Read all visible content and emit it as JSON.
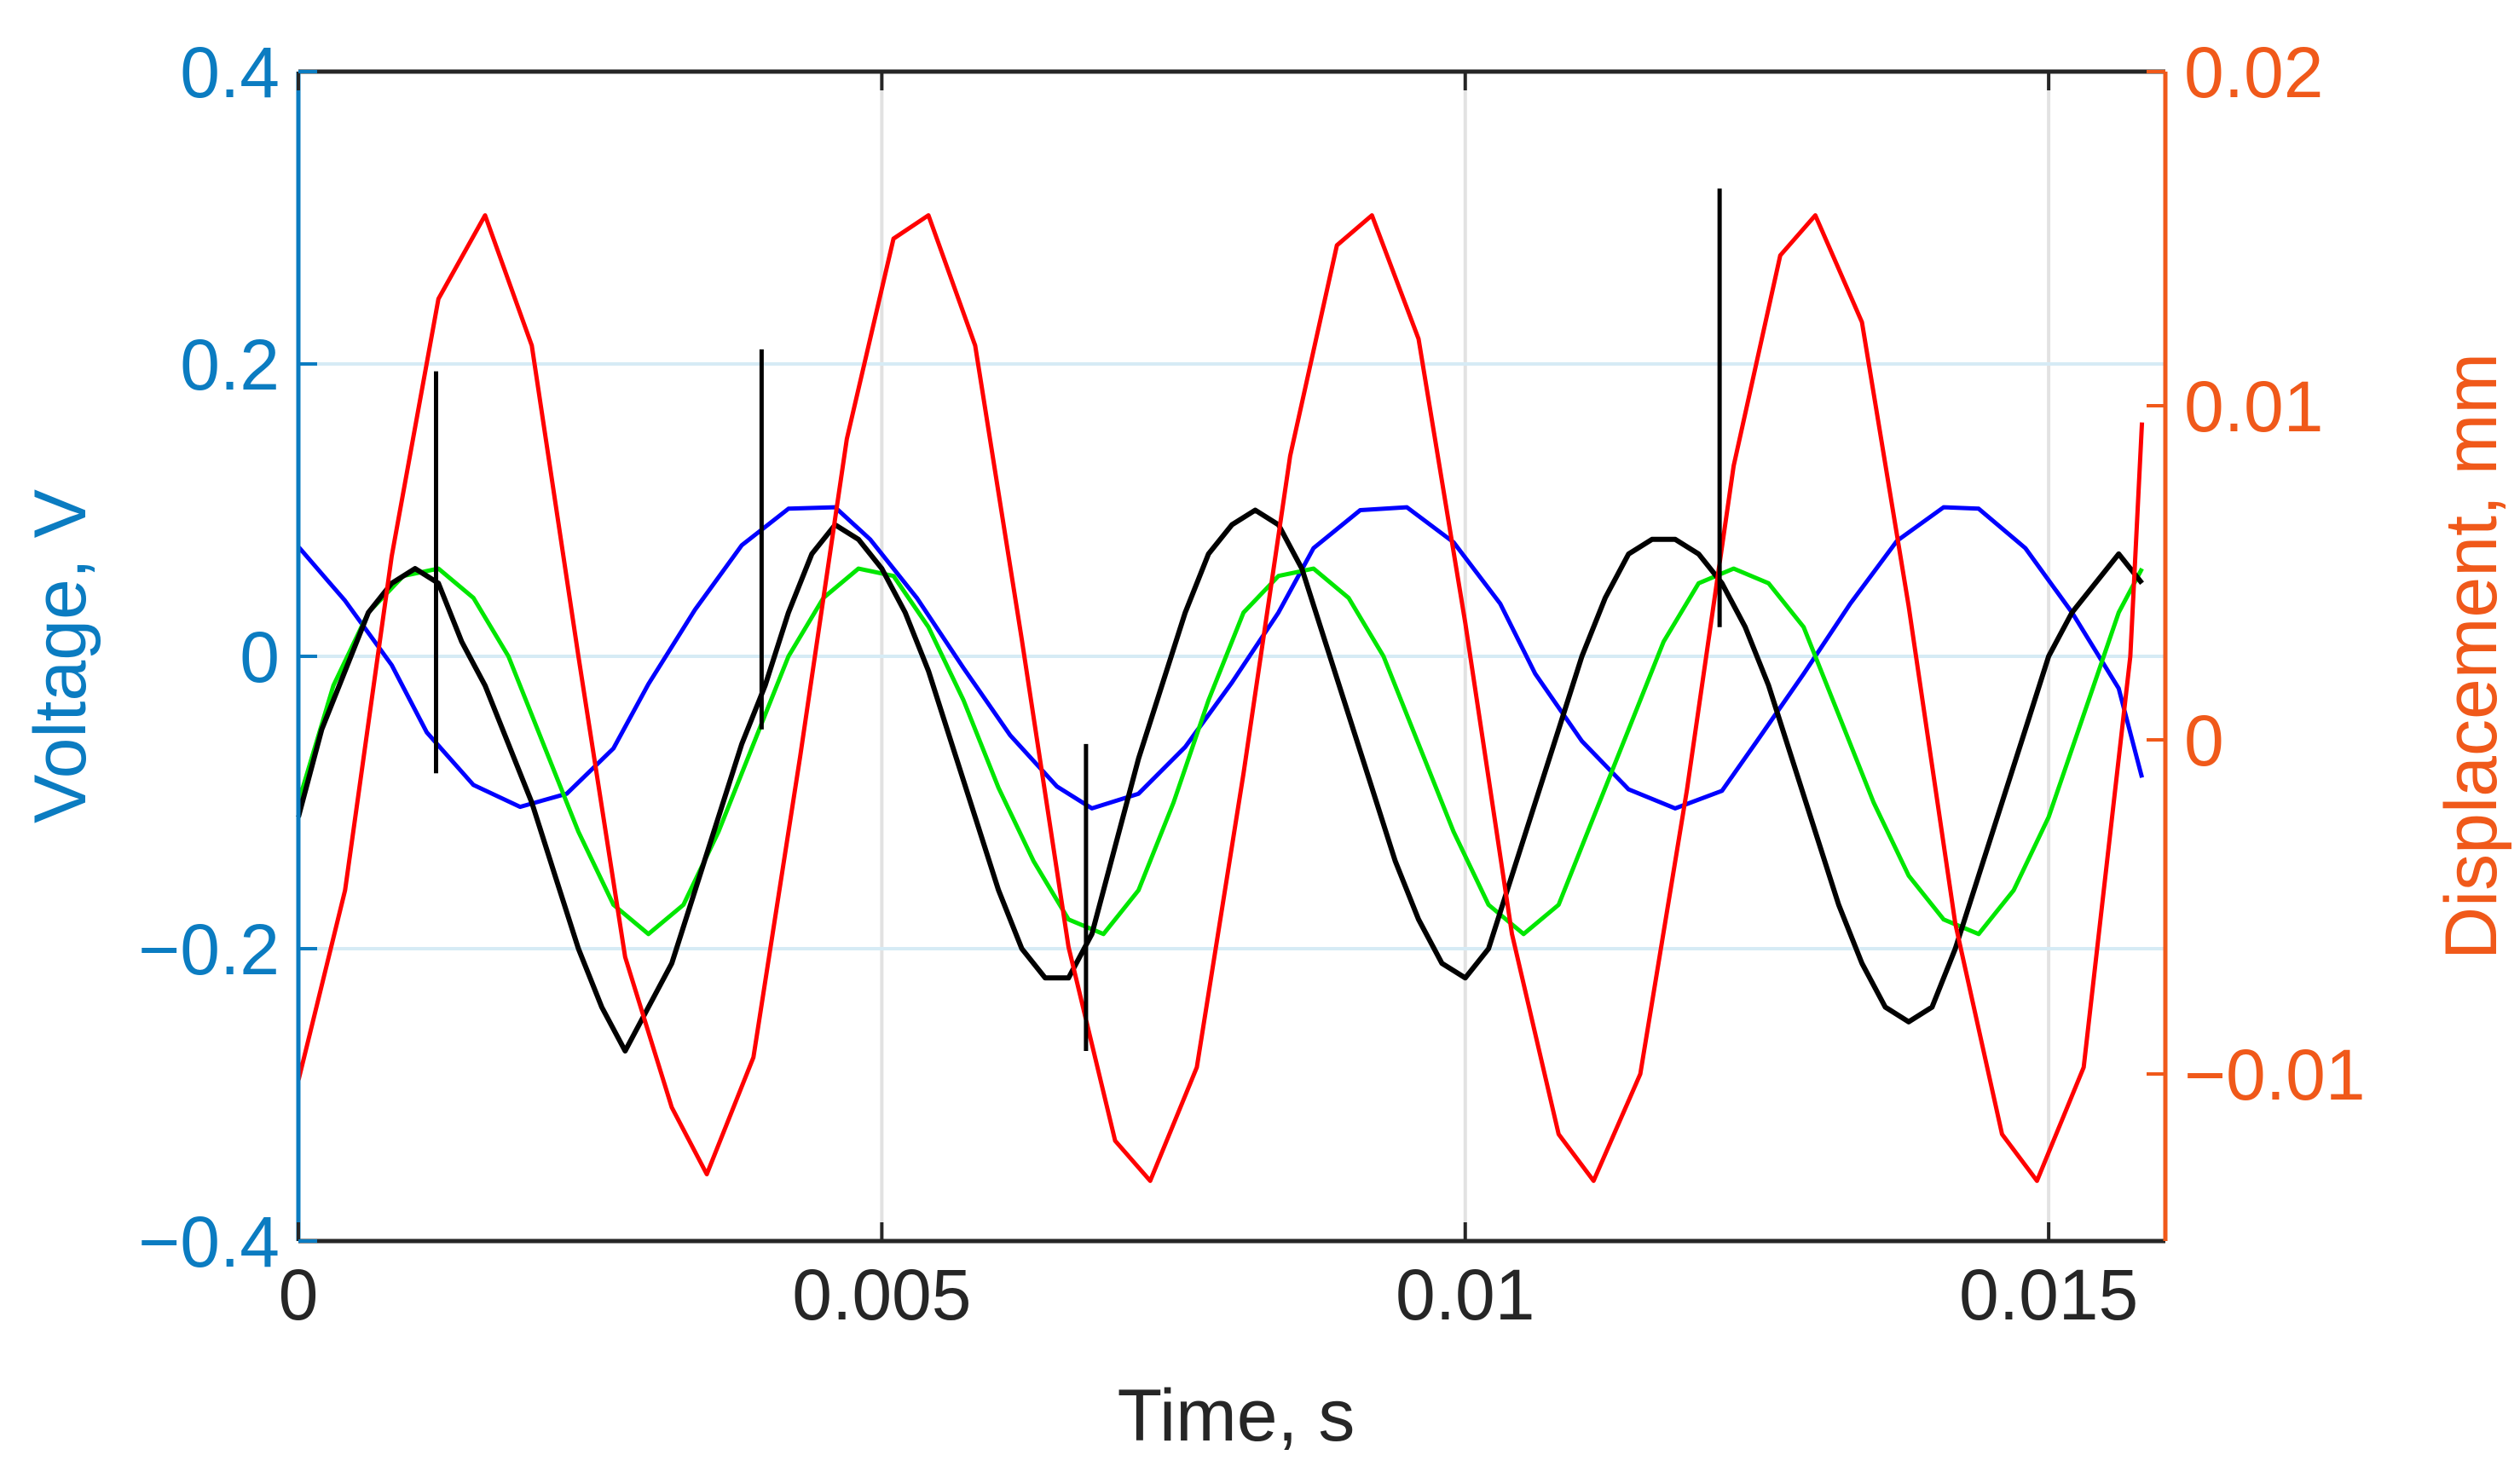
{
  "colors": {
    "left_axis": "#0b7cc1",
    "right_axis": "#f0591a",
    "frame": "#262626",
    "grid_x": "#e2e2e2",
    "grid_y": "#d6ebf5",
    "blue": "#0000ff",
    "green": "#00e600",
    "black": "#000000",
    "red": "#ff0000"
  },
  "chart_data": {
    "type": "line",
    "xlabel": "Time, s",
    "ylabel_left": "Voltage, V",
    "ylabel_right": "Displacement,  mm",
    "xlim": [
      0,
      0.016
    ],
    "ylim_left": [
      -0.4,
      0.4
    ],
    "ylim_right": [
      -0.015,
      0.02
    ],
    "x_ticks": [
      0,
      0.005,
      0.01,
      0.015
    ],
    "x_tick_labels": [
      "0",
      "0.005",
      "0.01",
      "0.015"
    ],
    "y_left_ticks": [
      -0.4,
      -0.2,
      0,
      0.2,
      0.4
    ],
    "y_left_tick_labels": [
      "−0.4",
      "−0.2",
      "0",
      "0.2",
      "0.4"
    ],
    "y_right_ticks": [
      -0.01,
      0,
      0.01,
      0.02
    ],
    "y_right_tick_labels": [
      "−0.01",
      "0",
      "0.01",
      "0.02"
    ],
    "grid": true,
    "series": [
      {
        "axis": "left",
        "color": "blue",
        "x": [
          0,
          0.0004,
          0.0008,
          0.0011,
          0.0015,
          0.0019,
          0.0023,
          0.0027,
          0.003,
          0.0034,
          0.0038,
          0.0042,
          0.0046,
          0.0049,
          0.0053,
          0.0057,
          0.0061,
          0.0065,
          0.0068,
          0.0072,
          0.0076,
          0.008,
          0.0084,
          0.0087,
          0.0091,
          0.0095,
          0.0099,
          0.0103,
          0.0106,
          0.011,
          0.0114,
          0.0118,
          0.0122,
          0.0125,
          0.0129,
          0.0133,
          0.0137,
          0.0141,
          0.0144,
          0.0148,
          0.0152,
          0.0156,
          0.0158
        ],
        "y": [
          0.075,
          0.038,
          -0.006,
          -0.052,
          -0.088,
          -0.103,
          -0.094,
          -0.063,
          -0.019,
          0.032,
          0.076,
          0.101,
          0.102,
          0.08,
          0.04,
          -0.008,
          -0.054,
          -0.089,
          -0.104,
          -0.094,
          -0.062,
          -0.018,
          0.03,
          0.074,
          0.1,
          0.102,
          0.078,
          0.036,
          -0.012,
          -0.058,
          -0.091,
          -0.104,
          -0.092,
          -0.058,
          -0.012,
          0.036,
          0.079,
          0.102,
          0.101,
          0.074,
          0.03,
          -0.022,
          -0.083
        ]
      },
      {
        "axis": "left",
        "color": "green",
        "x": [
          0,
          0.0003,
          0.0006,
          0.0009,
          0.0012,
          0.0015,
          0.0018,
          0.0021,
          0.0024,
          0.0027,
          0.003,
          0.0033,
          0.0036,
          0.0039,
          0.0042,
          0.0045,
          0.0048,
          0.0051,
          0.0054,
          0.0057,
          0.006,
          0.0063,
          0.0066,
          0.0069,
          0.0072,
          0.0075,
          0.0078,
          0.0081,
          0.0084,
          0.0087,
          0.009,
          0.0093,
          0.0096,
          0.0099,
          0.0102,
          0.0105,
          0.0108,
          0.0111,
          0.0114,
          0.0117,
          0.012,
          0.0123,
          0.0126,
          0.0129,
          0.0132,
          0.0135,
          0.0138,
          0.0141,
          0.0144,
          0.0147,
          0.015,
          0.0153,
          0.0156,
          0.0158
        ],
        "y": [
          -0.1,
          -0.02,
          0.03,
          0.055,
          0.06,
          0.04,
          0.0,
          -0.06,
          -0.12,
          -0.17,
          -0.19,
          -0.17,
          -0.12,
          -0.06,
          0.0,
          0.04,
          0.06,
          0.055,
          0.02,
          -0.03,
          -0.09,
          -0.14,
          -0.18,
          -0.19,
          -0.16,
          -0.1,
          -0.03,
          0.03,
          0.055,
          0.06,
          0.04,
          0.0,
          -0.06,
          -0.12,
          -0.17,
          -0.19,
          -0.17,
          -0.11,
          -0.05,
          0.01,
          0.05,
          0.06,
          0.05,
          0.02,
          -0.04,
          -0.1,
          -0.15,
          -0.18,
          -0.19,
          -0.16,
          -0.11,
          -0.04,
          0.03,
          0.06
        ]
      },
      {
        "axis": "left",
        "color": "black",
        "x": [
          0,
          0.0002,
          0.0004,
          0.0006,
          0.0008,
          0.001,
          0.0012,
          0.0014,
          0.0016,
          0.0018,
          0.002,
          0.0022,
          0.0024,
          0.0026,
          0.0028,
          0.003,
          0.0032,
          0.0034,
          0.0036,
          0.0038,
          0.004,
          0.0042,
          0.0044,
          0.0046,
          0.0048,
          0.005,
          0.0052,
          0.0054,
          0.0056,
          0.0058,
          0.006,
          0.0062,
          0.0064,
          0.0066,
          0.0068,
          0.007,
          0.0072,
          0.0074,
          0.0076,
          0.0078,
          0.008,
          0.0082,
          0.0084,
          0.0086,
          0.0088,
          0.009,
          0.0092,
          0.0094,
          0.0096,
          0.0098,
          0.01,
          0.0102,
          0.0104,
          0.0106,
          0.0108,
          0.011,
          0.0112,
          0.0114,
          0.0116,
          0.0118,
          0.012,
          0.0122,
          0.0124,
          0.0126,
          0.0128,
          0.013,
          0.0132,
          0.0134,
          0.0136,
          0.0138,
          0.014,
          0.0142,
          0.0144,
          0.0146,
          0.0148,
          0.015,
          0.0152,
          0.0154,
          0.0156,
          0.0158
        ],
        "y": [
          -0.11,
          -0.05,
          -0.01,
          0.03,
          0.05,
          0.06,
          0.05,
          0.01,
          -0.02,
          -0.06,
          -0.1,
          -0.15,
          -0.2,
          -0.24,
          -0.27,
          -0.24,
          -0.21,
          -0.16,
          -0.11,
          -0.06,
          -0.02,
          0.03,
          0.07,
          0.09,
          0.08,
          0.06,
          0.03,
          -0.01,
          -0.06,
          -0.11,
          -0.16,
          -0.2,
          -0.22,
          -0.22,
          -0.19,
          -0.13,
          -0.07,
          -0.02,
          0.03,
          0.07,
          0.09,
          0.1,
          0.09,
          0.06,
          0.01,
          -0.04,
          -0.09,
          -0.14,
          -0.18,
          -0.21,
          -0.22,
          -0.2,
          -0.15,
          -0.1,
          -0.05,
          0.0,
          0.04,
          0.07,
          0.08,
          0.08,
          0.07,
          0.05,
          0.02,
          -0.02,
          -0.07,
          -0.12,
          -0.17,
          -0.21,
          -0.24,
          -0.25,
          -0.24,
          -0.2,
          -0.15,
          -0.1,
          -0.05,
          0.0,
          0.03,
          0.05,
          0.07,
          0.05
        ]
      },
      {
        "axis": "right",
        "color": "red",
        "x": [
          0,
          0.0004,
          0.0008,
          0.0012,
          0.0016,
          0.002,
          0.0024,
          0.0028,
          0.0032,
          0.0035,
          0.0039,
          0.0043,
          0.0047,
          0.0051,
          0.0054,
          0.0058,
          0.0062,
          0.0066,
          0.007,
          0.0073,
          0.0077,
          0.0081,
          0.0085,
          0.0089,
          0.0092,
          0.0096,
          0.01,
          0.0104,
          0.0108,
          0.0111,
          0.0115,
          0.0119,
          0.0123,
          0.0127,
          0.013,
          0.0134,
          0.0138,
          0.0142,
          0.0146,
          0.0149,
          0.0153,
          0.0157,
          0.0158
        ],
        "y": [
          -0.0102,
          -0.0045,
          0.0055,
          0.0132,
          0.0157,
          0.0118,
          0.0025,
          -0.0065,
          -0.011,
          -0.013,
          -0.0095,
          -0.0005,
          0.009,
          0.015,
          0.0157,
          0.0118,
          0.003,
          -0.0062,
          -0.012,
          -0.0132,
          -0.0098,
          -0.001,
          0.0085,
          0.0148,
          0.0157,
          0.012,
          0.0035,
          -0.0058,
          -0.0118,
          -0.0132,
          -0.01,
          -0.0015,
          0.0082,
          0.0145,
          0.0157,
          0.0125,
          0.004,
          -0.0055,
          -0.0118,
          -0.0132,
          -0.0098,
          0.0025,
          0.0095
        ]
      }
    ],
    "spikes": [
      {
        "x": 0.00118,
        "y1": -0.08,
        "y2": 0.195
      },
      {
        "x": 0.00397,
        "y1": -0.05,
        "y2": 0.21
      },
      {
        "x": 0.00675,
        "y1": -0.27,
        "y2": -0.06
      },
      {
        "x": 0.01218,
        "y1": 0.02,
        "y2": 0.32
      }
    ]
  }
}
